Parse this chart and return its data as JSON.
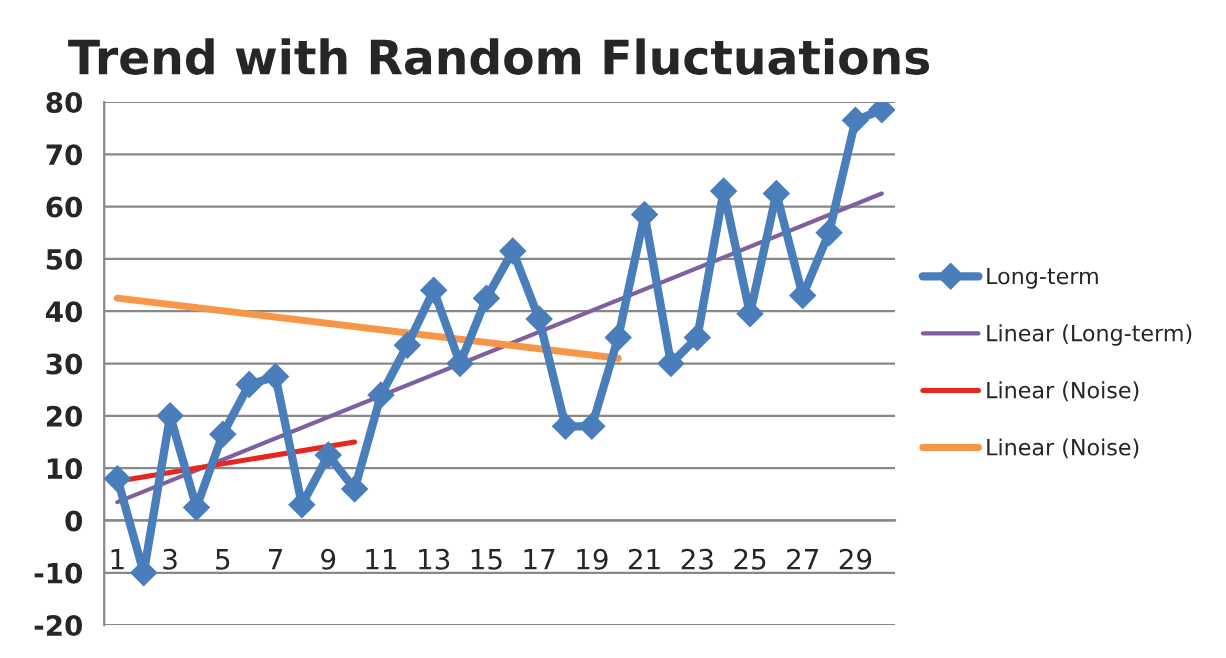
{
  "chart_data": {
    "type": "line",
    "title": "Trend with Random Fluctuations",
    "x": [
      1,
      2,
      3,
      4,
      5,
      6,
      7,
      8,
      9,
      10,
      11,
      12,
      13,
      14,
      15,
      16,
      17,
      18,
      19,
      20,
      21,
      22,
      23,
      24,
      25,
      26,
      27,
      28,
      29,
      30
    ],
    "series": [
      {
        "name": "Long-term",
        "color": "#4a7ebb",
        "marker": "diamond",
        "values": [
          8,
          -10,
          20,
          2.5,
          16.5,
          26,
          27.5,
          3,
          12.5,
          6,
          24,
          33.5,
          44,
          30,
          42.5,
          51.5,
          38.5,
          18,
          18,
          35,
          58.5,
          30,
          35,
          63,
          39.5,
          62.5,
          43,
          55,
          76.5,
          78.5
        ]
      },
      {
        "name": "Linear (Long-term)",
        "color": "#7f5fa0",
        "marker": "none",
        "x": [
          1,
          30
        ],
        "values": [
          3.5,
          62.5
        ]
      },
      {
        "name": "Linear (Noise)",
        "color": "#e8251e",
        "marker": "none",
        "x": [
          1,
          10
        ],
        "values": [
          7.5,
          15
        ]
      },
      {
        "name": "Linear (Noise)",
        "color": "#f79646",
        "marker": "none",
        "x": [
          1,
          20
        ],
        "values": [
          42.5,
          31
        ]
      }
    ],
    "xlim": [
      0.5,
      30.5
    ],
    "xticks": [
      1,
      3,
      5,
      7,
      9,
      11,
      13,
      15,
      17,
      19,
      21,
      23,
      25,
      27,
      29
    ],
    "ylim": [
      -20,
      80
    ],
    "yticks": [
      -20,
      -10,
      0,
      10,
      20,
      30,
      40,
      50,
      60,
      70,
      80
    ],
    "grid": "y",
    "legend": "right",
    "line_style": "solid"
  }
}
